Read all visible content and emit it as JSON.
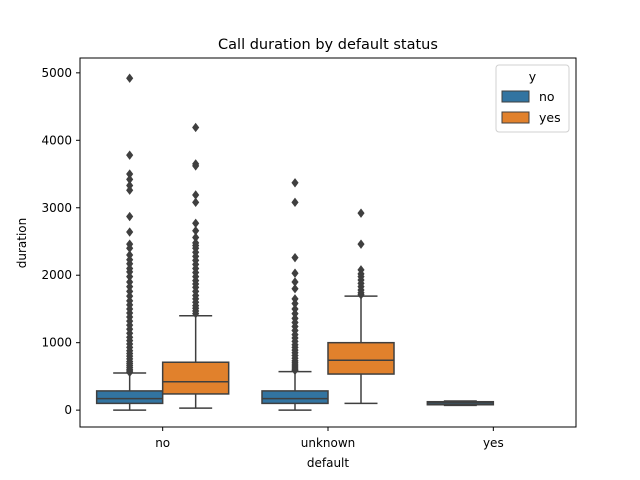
{
  "chart_data": {
    "type": "boxplot",
    "title": "Call duration by default status",
    "xlabel": "default",
    "ylabel": "duration",
    "ylim": [
      -250,
      5220
    ],
    "yticks": [
      0,
      1000,
      2000,
      3000,
      4000,
      5000
    ],
    "categories": [
      "no",
      "unknown",
      "yes"
    ],
    "legend": {
      "title": "y",
      "position": "top-right",
      "entries": [
        "no",
        "yes"
      ]
    },
    "grid": false,
    "series": [
      {
        "name": "no",
        "color": "#3274a1",
        "boxes": [
          {
            "category": "no",
            "q1": 100,
            "median": 170,
            "q3": 285,
            "whisker_low": 0,
            "whisker_high": 550,
            "outliers": [
              4920,
              3780,
              3500,
              3420,
              3330,
              3260,
              2870,
              2640,
              2460,
              2400,
              2300,
              2230,
              2170,
              2100,
              2050,
              1980,
              1900,
              1830,
              1760,
              1690,
              1620,
              1560,
              1500,
              1440,
              1380,
              1320,
              1260,
              1200,
              1140,
              1080,
              1030,
              980,
              930,
              880,
              840,
              800,
              760,
              720,
              690,
              660,
              630,
              600,
              580,
              560
            ]
          },
          {
            "category": "unknown",
            "q1": 100,
            "median": 170,
            "q3": 285,
            "whisker_low": 0,
            "whisker_high": 570,
            "outliers": [
              3370,
              3080,
              2260,
              2030,
              1900,
              1800,
              1650,
              1580,
              1500,
              1430,
              1360,
              1300,
              1240,
              1180,
              1120,
              1070,
              1020,
              970,
              930,
              890,
              850,
              810,
              770,
              730,
              700,
              670,
              640,
              610,
              590
            ]
          },
          {
            "category": "yes",
            "q1": 80,
            "median": 105,
            "q3": 125,
            "whisker_low": 70,
            "whisker_high": 135,
            "outliers": []
          }
        ]
      },
      {
        "name": "yes",
        "color": "#e1812c",
        "boxes": [
          {
            "category": "no",
            "q1": 240,
            "median": 420,
            "q3": 710,
            "whisker_low": 30,
            "whisker_high": 1400,
            "outliers": [
              4190,
              3650,
              3620,
              3190,
              3080,
              2770,
              2660,
              2560,
              2480,
              2440,
              2400,
              2340,
              2280,
              2220,
              2160,
              2100,
              2040,
              1980,
              1920,
              1870,
              1820,
              1760,
              1700,
              1650,
              1600,
              1550,
              1510,
              1470,
              1430
            ]
          },
          {
            "category": "unknown",
            "q1": 535,
            "median": 740,
            "q3": 1000,
            "whisker_low": 100,
            "whisker_high": 1690,
            "outliers": [
              2920,
              2460,
              2080,
              2020,
              1980,
              1930,
              1880,
              1830,
              1780,
              1740,
              1710
            ]
          }
        ]
      }
    ]
  }
}
